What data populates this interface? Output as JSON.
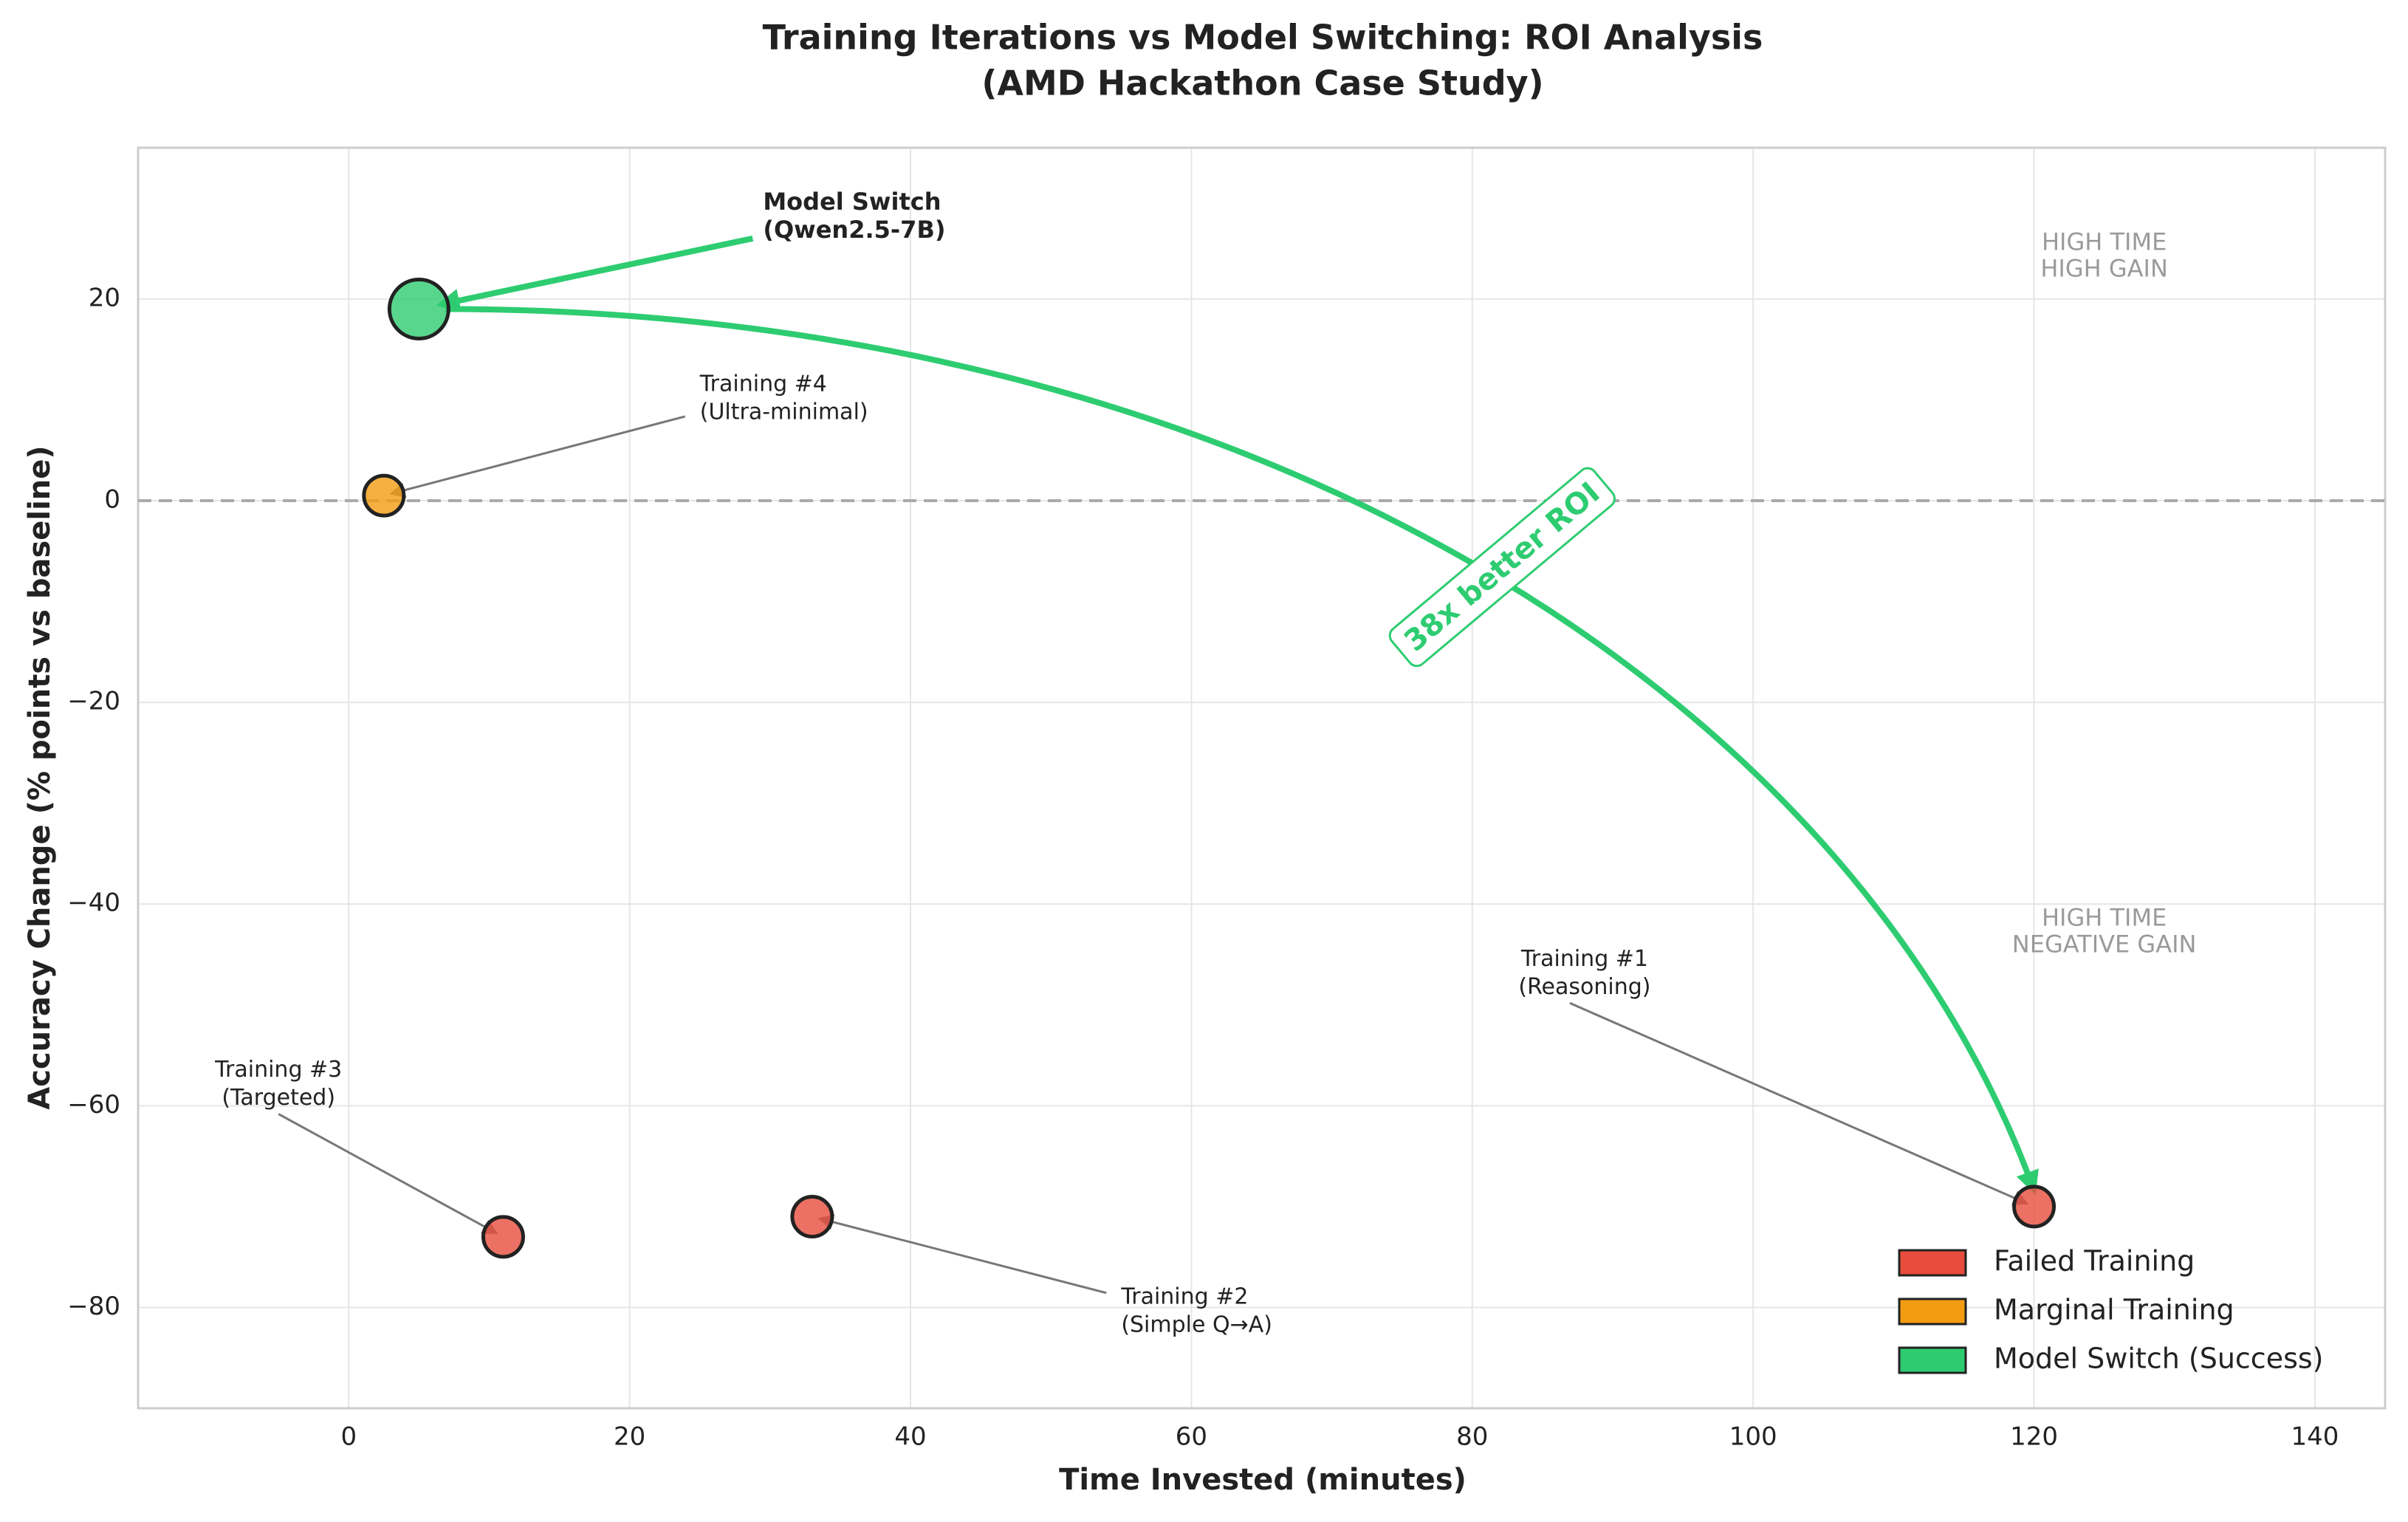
{
  "chart_data": {
    "type": "scatter",
    "title": "Training Iterations vs Model Switching: ROI Analysis",
    "subtitle": "(AMD Hackathon Case Study)",
    "x_label": "Time Invested (minutes)",
    "y_label": "Accuracy Change (% points vs baseline)",
    "xlim": [
      -15,
      145
    ],
    "ylim": [
      -90,
      35
    ],
    "xticks": [
      0,
      20,
      40,
      60,
      80,
      100,
      120,
      140
    ],
    "yticks": [
      {
        "value": -80,
        "label": "−80"
      },
      {
        "value": -60,
        "label": "−60"
      },
      {
        "value": -40,
        "label": "−40"
      },
      {
        "value": -20,
        "label": "−20"
      },
      0,
      20
    ],
    "grid": true,
    "legend": "lower right",
    "series": [
      {
        "name": "Failed Training",
        "color": "#e74c3c",
        "x": [
          120,
          33,
          11
        ],
        "y": [
          -70,
          -71,
          -73
        ]
      },
      {
        "name": "Marginal Training",
        "color": "#f39c12",
        "x": [
          2.5
        ],
        "y": [
          0.5
        ]
      },
      {
        "name": "Model Switch (Success)",
        "color": "#2ecc71",
        "x": [
          5
        ],
        "y": [
          19
        ]
      }
    ],
    "annotations": [
      {
        "text": [
          "Model Switch",
          "(Qwen2.5-7B)"
        ]
      },
      {
        "text": [
          "Training #4",
          "(Ultra-minimal)"
        ]
      },
      {
        "text": [
          "Training #1",
          "(Reasoning)"
        ]
      },
      {
        "text": [
          "Training #3",
          "(Targeted)"
        ]
      },
      {
        "text": [
          "Training #2",
          "(Simple Q→A)"
        ]
      },
      {
        "text": [
          "HIGH TIME",
          "HIGH GAIN"
        ]
      },
      {
        "text": [
          "HIGH TIME",
          "NEGATIVE GAIN"
        ]
      },
      {
        "text": [
          "38x better ROI"
        ]
      }
    ]
  }
}
